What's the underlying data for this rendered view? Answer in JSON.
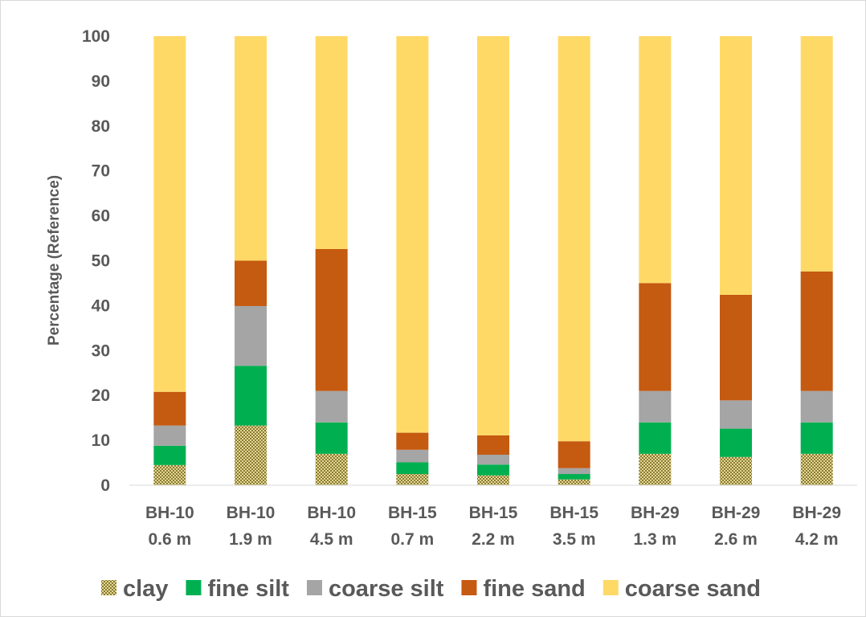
{
  "chart_data": {
    "type": "bar",
    "stacked": true,
    "ylabel": "Percentage (Reference)",
    "ylim": [
      0,
      100
    ],
    "yticks": [
      0,
      10,
      20,
      30,
      40,
      50,
      60,
      70,
      80,
      90,
      100
    ],
    "grid": false,
    "legend_position": "bottom",
    "categories": [
      [
        "BH-10",
        "0.6 m"
      ],
      [
        "BH-10",
        "1.9 m"
      ],
      [
        "BH-10",
        "4.5 m"
      ],
      [
        "BH-15",
        "0.7 m"
      ],
      [
        "BH-15",
        "2.2 m"
      ],
      [
        "BH-15",
        "3.5 m"
      ],
      [
        "BH-29",
        "1.3 m"
      ],
      [
        "BH-29",
        "2.6 m"
      ],
      [
        "BH-29",
        "4.2 m"
      ]
    ],
    "series": [
      {
        "name": "clay",
        "color": "#8B7B2E",
        "pattern": "dotted",
        "values": [
          4.5,
          13.3,
          7.0,
          2.5,
          2.2,
          1.3,
          7.0,
          6.3,
          7.0
        ]
      },
      {
        "name": "fine silt",
        "color": "#00B050",
        "values": [
          4.3,
          13.3,
          7.0,
          2.6,
          2.4,
          1.2,
          7.0,
          6.3,
          7.0
        ]
      },
      {
        "name": "coarse silt",
        "color": "#A5A5A5",
        "values": [
          4.5,
          13.3,
          7.0,
          2.8,
          2.2,
          1.3,
          7.0,
          6.3,
          7.0
        ]
      },
      {
        "name": "fine sand",
        "color": "#C55A11",
        "values": [
          7.5,
          10.1,
          31.6,
          3.8,
          4.3,
          6.0,
          24.0,
          23.5,
          26.6
        ]
      },
      {
        "name": "coarse sand",
        "color": "#FFD966",
        "values": [
          79.2,
          50.0,
          47.4,
          88.3,
          88.9,
          90.2,
          55.0,
          57.6,
          52.4
        ]
      }
    ]
  }
}
